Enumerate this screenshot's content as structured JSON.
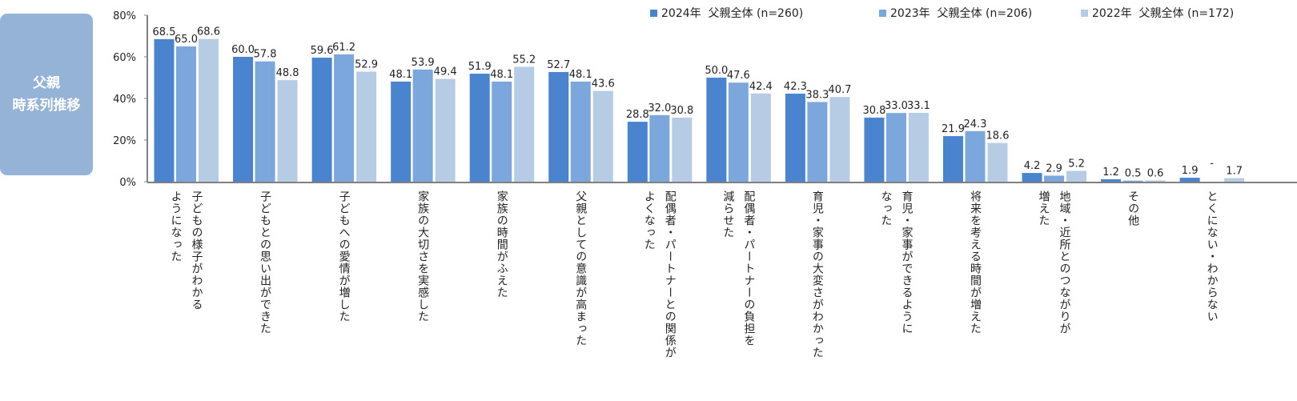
{
  "panel": {
    "line1": "父親",
    "line2": "時系列推移"
  },
  "colors": {
    "s2024": "#4a84cf",
    "s2023": "#7ba7dd",
    "s2022": "#b6cce5",
    "panel": "#95b3d7",
    "axis": "#808080"
  },
  "chart_data": {
    "type": "bar",
    "ylim": [
      0,
      80
    ],
    "yticks": [
      "0%",
      "20%",
      "40%",
      "60%",
      "80%"
    ],
    "legend_position": "top-right",
    "series": [
      {
        "name": "2024年  父親全体 (n=260)",
        "values": [
          68.5,
          60.0,
          59.6,
          48.1,
          51.9,
          52.7,
          28.8,
          50.0,
          42.3,
          30.8,
          21.9,
          4.2,
          1.2,
          1.9
        ],
        "labels": [
          "68.5",
          "60.0",
          "59.6",
          "48.1",
          "51.9",
          "52.7",
          "28.8",
          "50.0",
          "42.3",
          "30.8",
          "21.9",
          "4.2",
          "1.2",
          "1.9"
        ]
      },
      {
        "name": "2023年  父親全体 (n=206)",
        "values": [
          65.0,
          57.8,
          61.2,
          53.9,
          48.1,
          48.1,
          32.0,
          47.6,
          38.3,
          33.0,
          24.3,
          2.9,
          0.5,
          null
        ],
        "labels": [
          "65.0",
          "57.8",
          "61.2",
          "53.9",
          "48.1",
          "48.1",
          "32.0",
          "47.6",
          "38.3",
          "33.0",
          "24.3",
          "2.9",
          "0.5",
          "-"
        ]
      },
      {
        "name": "2022年  父親全体 (n=172)",
        "values": [
          68.6,
          48.8,
          52.9,
          49.4,
          55.2,
          43.6,
          30.8,
          42.4,
          40.7,
          33.1,
          18.6,
          5.2,
          0.6,
          1.7
        ],
        "labels": [
          "68.6",
          "48.8",
          "52.9",
          "49.4",
          "55.2",
          "43.6",
          "30.8",
          "42.4",
          "40.7",
          "33.1",
          "18.6",
          "5.2",
          "0.6",
          "1.7"
        ]
      }
    ],
    "categories": [
      "子どもの様子がわかる\nようになった",
      "子どもとの思い出ができた",
      "子どもへの愛情が増した",
      "家族の大切さを実感した",
      "家族の時間がふえた",
      "父親としての意識が高まった",
      "配偶者・パートナーとの関係が\nよくなった",
      "配偶者・パートナーの負担を\n減らせた",
      "育児・家事の大変さがわかった",
      "育児・家事ができるように\nなった",
      "将来を考える時間が増えた",
      "地域・近所とのつながりが\n増えた",
      "その他",
      "とくにない・わからない"
    ]
  }
}
